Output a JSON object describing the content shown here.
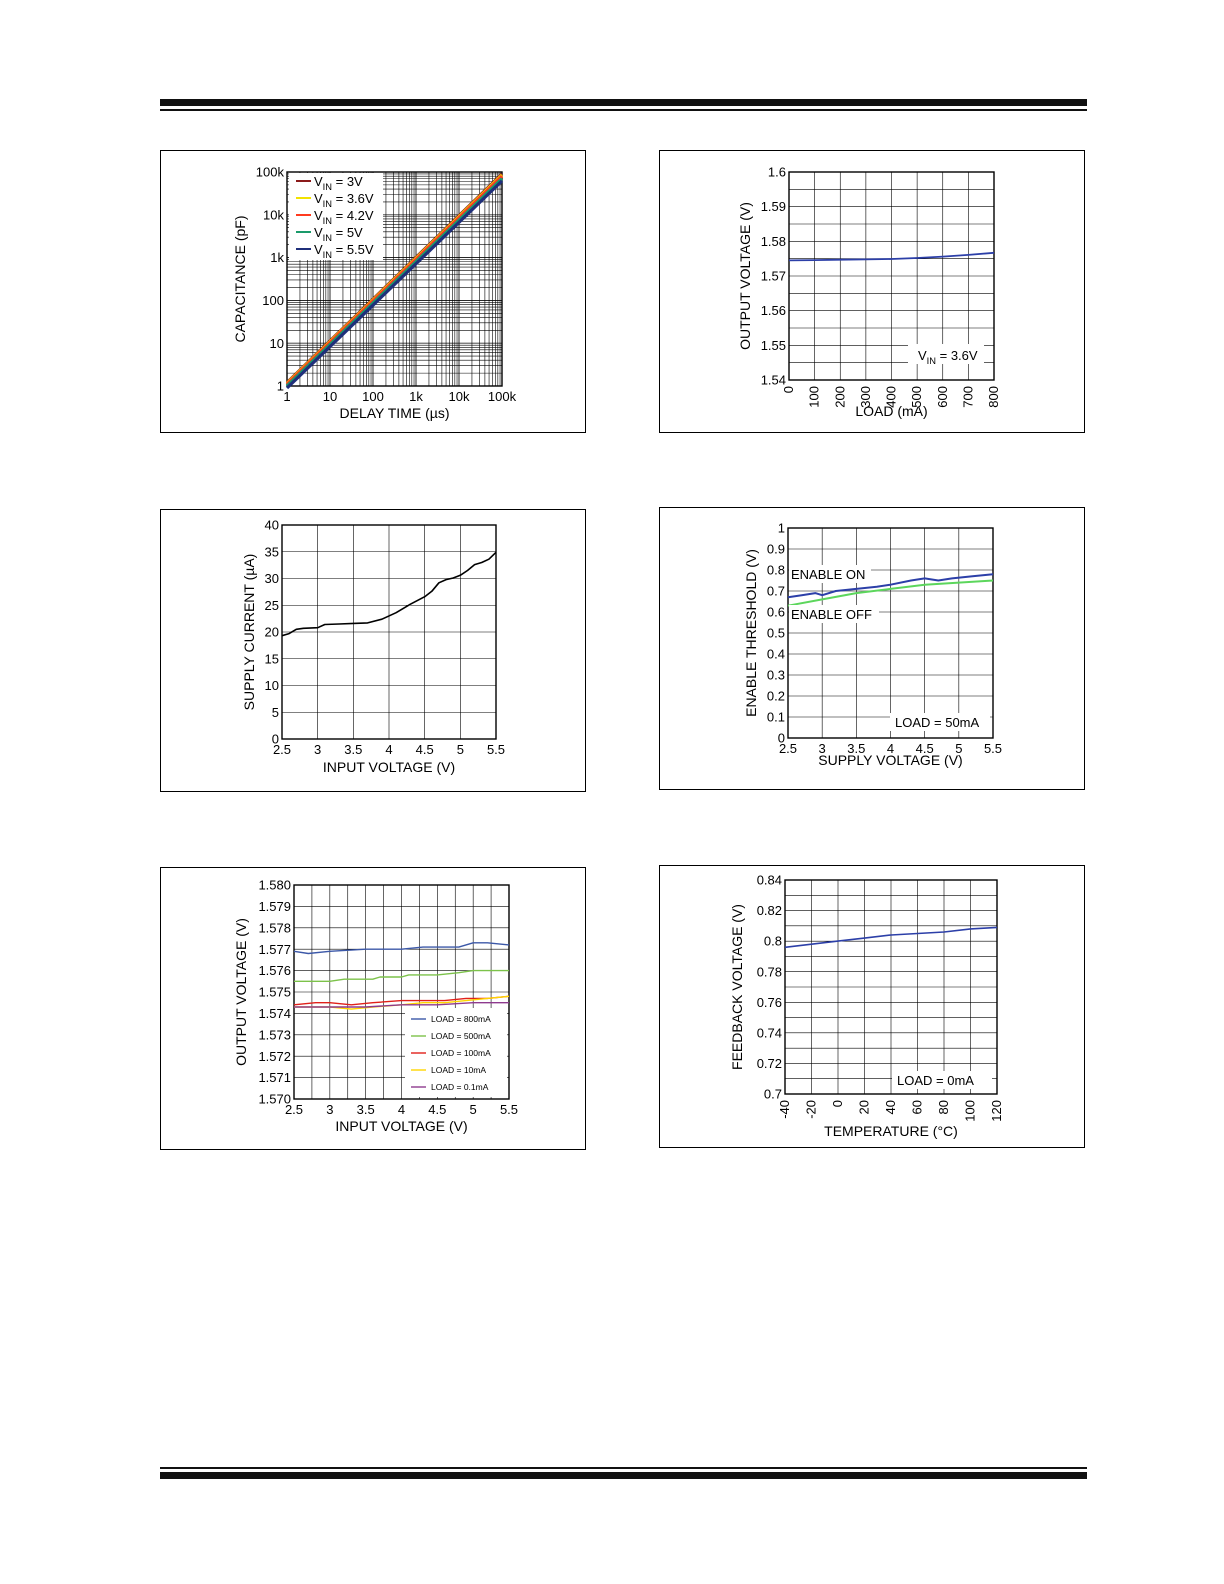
{
  "chart_data": [
    {
      "type": "line",
      "xlabel": "DELAY TIME (µs)",
      "ylabel": "CAPACITANCE (pF)",
      "xscale": "log",
      "yscale": "log",
      "xlim": [
        1,
        100000
      ],
      "ylim": [
        1,
        100000
      ],
      "xticks": [
        "1",
        "10",
        "100",
        "1k",
        "10k",
        "100k"
      ],
      "yticks": [
        "1",
        "10",
        "100",
        "1k",
        "10k",
        "100k"
      ],
      "grid": true,
      "legend": "top-left",
      "series": [
        {
          "name": "VIN = 3V",
          "x": [
            1,
            100000
          ],
          "y": [
            1.2,
            90000
          ]
        },
        {
          "name": "VIN = 3.6V",
          "x": [
            1,
            100000
          ],
          "y": [
            1.15,
            85000
          ]
        },
        {
          "name": "VIN = 4.2V",
          "x": [
            1,
            100000
          ],
          "y": [
            1.1,
            80000
          ]
        },
        {
          "name": "VIN = 5V",
          "x": [
            1,
            100000
          ],
          "y": [
            1.0,
            70000
          ]
        },
        {
          "name": "VIN = 5.5V",
          "x": [
            1,
            100000
          ],
          "y": [
            0.9,
            62000
          ]
        }
      ]
    },
    {
      "type": "line",
      "xlabel": "LOAD (mA)",
      "ylabel": "OUTPUT VOLTAGE (V)",
      "xlim": [
        0,
        800
      ],
      "ylim": [
        1.54,
        1.6
      ],
      "xticks": [
        "0",
        "100",
        "200",
        "300",
        "400",
        "500",
        "600",
        "700",
        "800"
      ],
      "yticks": [
        "1.54",
        "1.55",
        "1.56",
        "1.57",
        "1.58",
        "1.59",
        "1.6"
      ],
      "grid": true,
      "annotation": "VIN = 3.6V",
      "series": [
        {
          "x": [
            0,
            100,
            200,
            300,
            400,
            500,
            600,
            700,
            800
          ],
          "y": [
            1.5745,
            1.5746,
            1.5747,
            1.5748,
            1.5749,
            1.5752,
            1.5756,
            1.5761,
            1.5767
          ]
        }
      ]
    },
    {
      "type": "line",
      "xlabel": "INPUT VOLTAGE (V)",
      "ylabel": "SUPPLY CURRENT (µA)",
      "xlim": [
        2.5,
        5.5
      ],
      "ylim": [
        0,
        40
      ],
      "xticks": [
        "2.5",
        "3",
        "3.5",
        "4",
        "4.5",
        "5",
        "5.5"
      ],
      "yticks": [
        "0",
        "5",
        "10",
        "15",
        "20",
        "25",
        "30",
        "35",
        "40"
      ],
      "grid": true,
      "series": [
        {
          "x": [
            2.5,
            2.6,
            2.7,
            2.8,
            3.0,
            3.1,
            3.3,
            3.5,
            3.7,
            3.9,
            4.1,
            4.3,
            4.5,
            4.6,
            4.7,
            4.8,
            4.9,
            5.0,
            5.1,
            5.2,
            5.3,
            5.4,
            5.5
          ],
          "y": [
            19.3,
            19.7,
            20.5,
            20.7,
            20.8,
            21.4,
            21.5,
            21.6,
            21.7,
            22.4,
            23.6,
            25.2,
            26.6,
            27.6,
            29.2,
            29.8,
            30.1,
            30.6,
            31.5,
            32.6,
            33.0,
            33.6,
            34.9
          ]
        }
      ]
    },
    {
      "type": "line",
      "xlabel": "SUPPLY VOLTAGE (V)",
      "ylabel": "ENABLE THRESHOLD (V)",
      "xlim": [
        2.5,
        5.5
      ],
      "ylim": [
        0,
        1
      ],
      "xticks": [
        "2.5",
        "3",
        "3.5",
        "4",
        "4.5",
        "5",
        "5.5"
      ],
      "yticks": [
        "0",
        "0.1",
        "0.2",
        "0.3",
        "0.4",
        "0.5",
        "0.6",
        "0.7",
        "0.8",
        "0.9",
        "1"
      ],
      "grid": true,
      "annotation": "LOAD = 50mA",
      "series": [
        {
          "name": "ENABLE ON",
          "x": [
            2.5,
            2.7,
            2.9,
            3.0,
            3.2,
            3.5,
            3.8,
            4.0,
            4.3,
            4.5,
            4.7,
            4.9,
            5.2,
            5.5
          ],
          "y": [
            0.67,
            0.68,
            0.69,
            0.68,
            0.7,
            0.71,
            0.72,
            0.73,
            0.75,
            0.76,
            0.75,
            0.76,
            0.77,
            0.78
          ]
        },
        {
          "name": "ENABLE OFF",
          "x": [
            2.5,
            3.0,
            3.5,
            4.0,
            4.5,
            5.0,
            5.5
          ],
          "y": [
            0.63,
            0.66,
            0.69,
            0.71,
            0.73,
            0.74,
            0.75
          ]
        }
      ]
    },
    {
      "type": "line",
      "xlabel": "INPUT VOLTAGE (V)",
      "ylabel": "OUTPUT VOLTAGE (V)",
      "xlim": [
        2.5,
        5.5
      ],
      "ylim": [
        1.57,
        1.58
      ],
      "xticks": [
        "2.5",
        "3",
        "3.5",
        "4",
        "4.5",
        "5",
        "5.5"
      ],
      "yticks": [
        "1.570",
        "1.571",
        "1.572",
        "1.573",
        "1.574",
        "1.575",
        "1.576",
        "1.577",
        "1.578",
        "1.579",
        "1.580"
      ],
      "grid": true,
      "legend": "bottom-right",
      "series": [
        {
          "name": "LOAD = 800mA",
          "x": [
            2.5,
            2.7,
            3.0,
            3.5,
            4.0,
            4.3,
            4.5,
            4.8,
            5.0,
            5.2,
            5.5
          ],
          "y": [
            1.5769,
            1.5768,
            1.5769,
            1.577,
            1.577,
            1.5771,
            1.5771,
            1.5771,
            1.5773,
            1.5773,
            1.5772
          ]
        },
        {
          "name": "LOAD = 500mA",
          "x": [
            2.5,
            3.0,
            3.2,
            3.5,
            3.6,
            3.7,
            4.0,
            4.1,
            4.2,
            4.5,
            4.8,
            5.0,
            5.5
          ],
          "y": [
            1.5755,
            1.5755,
            1.5756,
            1.5756,
            1.5756,
            1.5757,
            1.5757,
            1.5758,
            1.5758,
            1.5758,
            1.5759,
            1.576,
            1.576
          ]
        },
        {
          "name": "LOAD = 100mA",
          "x": [
            2.5,
            2.8,
            3.0,
            3.3,
            3.6,
            4.0,
            4.3,
            4.6,
            4.9,
            5.2,
            5.5
          ],
          "y": [
            1.5744,
            1.5745,
            1.5745,
            1.5744,
            1.5745,
            1.5746,
            1.5746,
            1.5746,
            1.5747,
            1.5747,
            1.5748
          ]
        },
        {
          "name": "LOAD = 10mA",
          "x": [
            2.5,
            2.8,
            3.0,
            3.3,
            3.6,
            4.0,
            4.3,
            4.6,
            4.9,
            5.2,
            5.5
          ],
          "y": [
            1.5743,
            1.5743,
            1.5743,
            1.5742,
            1.5743,
            1.5744,
            1.5745,
            1.5745,
            1.5746,
            1.5747,
            1.5748
          ]
        },
        {
          "name": "LOAD = 0.1mA",
          "x": [
            2.5,
            3.0,
            3.5,
            4.0,
            4.5,
            5.0,
            5.5
          ],
          "y": [
            1.5743,
            1.5743,
            1.5743,
            1.5744,
            1.5744,
            1.5745,
            1.5745
          ]
        }
      ]
    },
    {
      "type": "line",
      "xlabel": "TEMPERATURE (°C)",
      "ylabel": "FEEDBACK VOLTAGE (V)",
      "xlim": [
        -40,
        120
      ],
      "ylim": [
        0.7,
        0.84
      ],
      "xticks": [
        "-40",
        "-20",
        "0",
        "20",
        "40",
        "60",
        "80",
        "100",
        "120"
      ],
      "yticks": [
        "0.7",
        "0.72",
        "0.74",
        "0.76",
        "0.78",
        "0.8",
        "0.82",
        "0.84"
      ],
      "grid": true,
      "annotation": "LOAD = 0mA",
      "series": [
        {
          "x": [
            -40,
            -20,
            0,
            20,
            40,
            60,
            80,
            100,
            120
          ],
          "y": [
            0.796,
            0.798,
            0.8,
            0.802,
            0.804,
            0.805,
            0.806,
            0.808,
            0.809
          ]
        }
      ]
    }
  ],
  "colors": {
    "vin_3v": "#8b1a1a",
    "vin_3_6v": "#f2e200",
    "vin_4_2v": "#ff3b1f",
    "vin_5v": "#1a9a6a",
    "vin_5_5v": "#1f2f7a",
    "line_blue": "#2c3fa8",
    "line_green": "#5cd65c",
    "line_black": "#000000",
    "load_800": "#3c58a8",
    "load_500": "#7cc24a",
    "load_100": "#e0201a",
    "load_10": "#ffd600",
    "load_0_1": "#8e3a8e"
  }
}
